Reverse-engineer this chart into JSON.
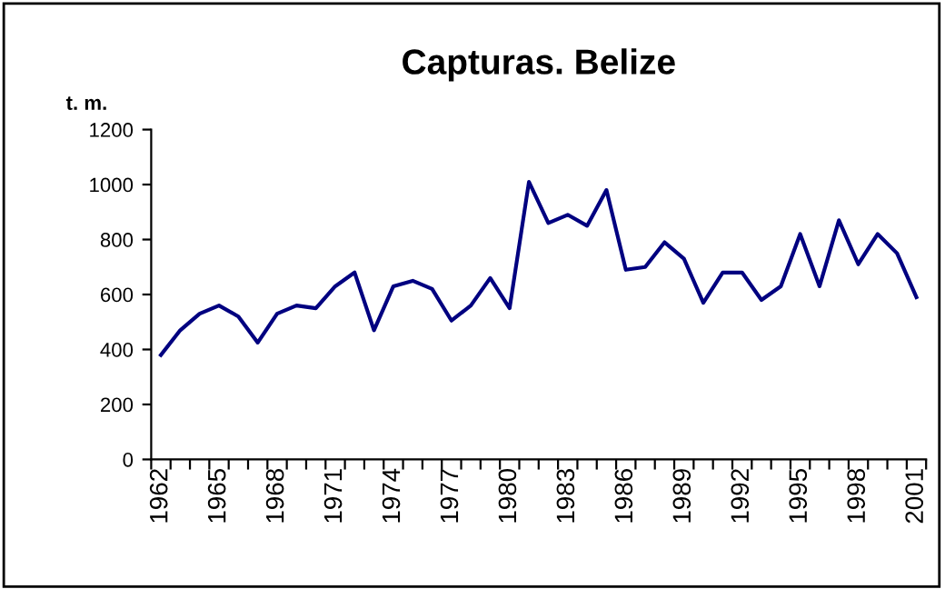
{
  "chart_data": {
    "type": "line",
    "title": "Capturas. Belize",
    "ylabel": "t. m.",
    "categories": [
      "1962",
      null,
      null,
      "1965",
      null,
      null,
      "1968",
      null,
      null,
      "1971",
      null,
      null,
      "1974",
      null,
      null,
      "1977",
      null,
      null,
      "1980",
      null,
      null,
      "1983",
      null,
      null,
      "1986",
      null,
      null,
      "1989",
      null,
      null,
      "1992",
      null,
      null,
      "1995",
      null,
      null,
      "1998",
      null,
      null,
      "2001"
    ],
    "series": [
      {
        "color": "#000080",
        "values": [
          380,
          470,
          530,
          560,
          520,
          425,
          530,
          560,
          550,
          630,
          680,
          470,
          630,
          650,
          620,
          505,
          560,
          660,
          550,
          1010,
          860,
          890,
          850,
          980,
          690,
          700,
          790,
          730,
          570,
          680,
          680,
          580,
          630,
          820,
          630,
          870,
          710,
          820,
          750,
          590
        ]
      }
    ],
    "ylim": [
      0,
      1200
    ],
    "yticks": [
      0,
      200,
      400,
      600,
      800,
      1000,
      1200
    ],
    "grid": false,
    "legend": false,
    "marker": "none",
    "line_style": "solid"
  }
}
